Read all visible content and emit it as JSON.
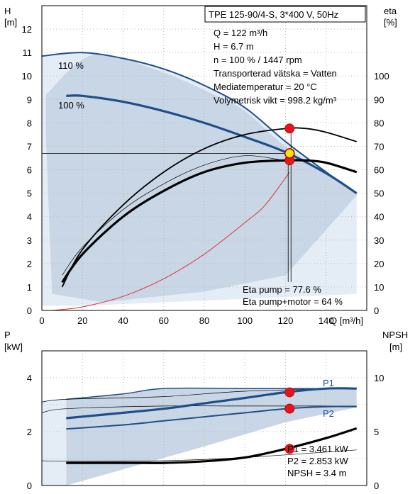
{
  "colors": {
    "area_light": "#c9d6e5",
    "area_lighter": "#e4ecf5",
    "curve_blue": "#1e4f8a",
    "marker_red": "#e8141b",
    "marker_yellow": "#f5e600",
    "system_curve": "#e03030"
  },
  "header": {
    "title": "TPE 125-90/4-S, 3*400 V, 50Hz",
    "info_lines": [
      "Q = 122 m³/h",
      "H = 6.7 m",
      "n = 100 % / 1447 rpm",
      "Transporterad vätska = Vatten",
      "Mediatemperatur = 20 °C",
      "Volymetrisk vikt = 998.2 kg/m³"
    ]
  },
  "top_chart": {
    "y_label_name": "H",
    "y_label_unit": "[m]",
    "y2_label_name": "eta",
    "y2_label_unit": "[%]",
    "x_label": "Q [m³/h]",
    "y_ticks": [
      "0",
      "1",
      "2",
      "3",
      "4",
      "5",
      "6",
      "7",
      "8",
      "9",
      "10",
      "11",
      "12"
    ],
    "y2_ticks": [
      "0",
      "10",
      "20",
      "30",
      "40",
      "50",
      "60",
      "70",
      "80",
      "90",
      "100"
    ],
    "x_ticks": [
      "0",
      "20",
      "40",
      "60",
      "80",
      "100",
      "120",
      "140"
    ],
    "curve_labels": [
      "110 %",
      "100 %"
    ],
    "eta_notes": [
      "Eta pump = 77.6 %",
      "Eta pump+motor = 64 %"
    ]
  },
  "bottom_chart": {
    "y_label_name": "P",
    "y_label_unit": "[kW]",
    "y2_label_name": "NPSH",
    "y2_label_unit": "[m]",
    "y_ticks": [
      "0",
      "2",
      "4"
    ],
    "y2_ticks": [
      "0",
      "5",
      "10"
    ],
    "series_labels": [
      "P1",
      "P2"
    ],
    "notes": [
      "P1 = 3.461 kW",
      "P2 = 2.853 kW",
      "NPSH = 3.4 m"
    ]
  },
  "chart_data": [
    {
      "type": "line",
      "x_axis": "Q [m³/h]",
      "y_axis": "H [m]",
      "y2_axis": "eta [%]",
      "xlim": [
        0,
        160
      ],
      "ylim": [
        0,
        13
      ],
      "y2lim": [
        0,
        130
      ],
      "grid": true,
      "series": [
        {
          "name": "110 %",
          "axis": "y",
          "x": [
            0,
            20,
            40,
            60,
            80,
            100,
            120,
            140,
            155
          ],
          "y": [
            10.85,
            11.0,
            10.75,
            10.3,
            9.6,
            8.65,
            7.2,
            5.9,
            5.0
          ]
        },
        {
          "name": "100 %",
          "axis": "y",
          "x": [
            12,
            20,
            40,
            60,
            80,
            100,
            120,
            140,
            155
          ],
          "y": [
            9.15,
            9.15,
            8.9,
            8.5,
            8.0,
            7.4,
            6.75,
            5.85,
            5.0
          ]
        },
        {
          "axis": "y2",
          "x": [
            10,
            20,
            40,
            60,
            80,
            100,
            120,
            130,
            140,
            155
          ],
          "y": [
            10,
            26,
            45,
            59,
            69,
            75,
            77.6,
            77.6,
            76,
            72
          ]
        },
        {
          "axis": "y2",
          "x": [
            10,
            20,
            40,
            60,
            80,
            100,
            120,
            130,
            140,
            155
          ],
          "y": [
            12,
            24,
            40,
            51,
            59,
            63,
            64,
            64,
            63,
            59
          ]
        },
        {
          "axis": "y",
          "x": [
            5,
            20,
            40,
            60,
            80,
            100,
            110,
            122
          ],
          "y": [
            0,
            0.15,
            0.6,
            1.35,
            2.4,
            3.75,
            4.5,
            5.9
          ]
        }
      ],
      "operating_point": {
        "Q": 122,
        "H": 6.7,
        "eta_pump": 77.6,
        "eta_pump_motor": 64
      }
    },
    {
      "type": "line",
      "x_axis": "Q [m³/h]",
      "y_axis": "P [kW]",
      "y2_axis": "NPSH [m]",
      "xlim": [
        0,
        160
      ],
      "ylim": [
        0,
        5
      ],
      "y2lim": [
        0,
        12.5
      ],
      "grid": true,
      "series": [
        {
          "name": "P1",
          "axis": "y",
          "x": [
            12,
            40,
            60,
            80,
            100,
            120,
            140,
            155
          ],
          "y": [
            2.5,
            2.7,
            2.85,
            3.05,
            3.25,
            3.46,
            3.6,
            3.6
          ]
        },
        {
          "name": "P2",
          "axis": "y",
          "x": [
            12,
            40,
            60,
            80,
            100,
            120,
            140,
            155
          ],
          "y": [
            2.1,
            2.25,
            2.4,
            2.55,
            2.7,
            2.85,
            2.93,
            2.93
          ]
        },
        {
          "name": "NPSH",
          "axis": "y2",
          "x": [
            12,
            40,
            60,
            80,
            100,
            120,
            140,
            155
          ],
          "y": [
            2.1,
            2.1,
            2.1,
            2.25,
            2.6,
            3.4,
            4.4,
            5.3
          ]
        }
      ],
      "operating_point": {
        "Q": 122,
        "P1": 3.461,
        "P2": 2.853,
        "NPSH": 3.4
      }
    }
  ]
}
